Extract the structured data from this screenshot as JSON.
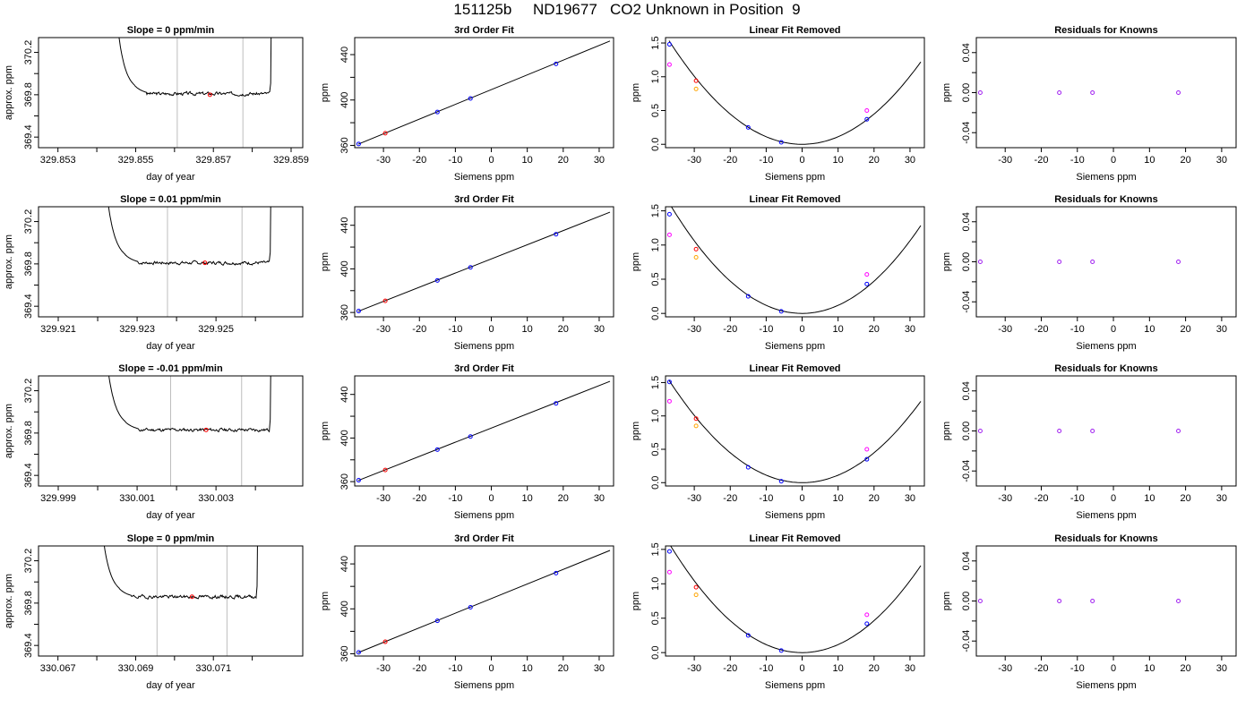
{
  "page_title": "151125b     ND19677   CO2 Unknown in Position  9",
  "colors": {
    "trace": "#000000",
    "window_lines": "#bebebe",
    "avg_point": "#ff0000",
    "standard": "#0000ff",
    "unknown_red": "#ff0000",
    "unknown_orange": "#ffa500",
    "magenta": "#ff00ff",
    "residual": "#a020f0"
  },
  "chart_data": [
    {
      "type": "line",
      "row": 0,
      "panel": "time_trace",
      "title": "Slope =  0  ppm/min",
      "xlabel": "day of year",
      "ylabel": "approx. ppm",
      "xlim": [
        329.8525,
        329.8593
      ],
      "ylim": [
        369.3,
        370.34
      ],
      "x_ticks": [
        329.853,
        329.854,
        329.855,
        329.856,
        329.857,
        329.858,
        329.859
      ],
      "x_tick_labels": [
        "329.853",
        "",
        "329.855",
        "",
        "329.857",
        "",
        "329.859"
      ],
      "y_ticks": [
        369.4,
        369.6,
        369.8,
        370.0,
        370.2
      ],
      "y_tick_labels": [
        "369.4",
        "",
        "369.8",
        "",
        "370.2"
      ],
      "trace": {
        "x_start": 329.8545,
        "x_end": 329.85845,
        "base": 369.81,
        "left_level": 369.83,
        "seed": 3
      },
      "window": [
        329.85607,
        329.85776
      ],
      "avg_point": {
        "x": 329.85691,
        "y": 369.8
      }
    },
    {
      "type": "scatter",
      "row": 0,
      "panel": "third_order_fit",
      "title": "3rd Order Fit",
      "xlabel": "Siemens ppm",
      "ylabel": "ppm",
      "xlim": [
        -38,
        34
      ],
      "ylim": [
        358,
        455
      ],
      "x_ticks": [
        -30,
        -20,
        -10,
        0,
        10,
        20,
        30
      ],
      "x_tick_labels": [
        "-30",
        "-20",
        "-10",
        "0",
        "10",
        "20",
        "30"
      ],
      "y_ticks": [
        360,
        380,
        400,
        420,
        440
      ],
      "y_tick_labels": [
        "360",
        "",
        "400",
        "",
        "440"
      ],
      "fit_line": {
        "x": [
          -37,
          33
        ],
        "y": [
          361.1,
          452.0
        ]
      },
      "standards": {
        "x": [
          -36.9,
          -15,
          -5.8,
          18
        ],
        "y": [
          361.3,
          389.4,
          401.4,
          431.8
        ]
      },
      "unknown": {
        "x": -29.5,
        "y": 370.7
      }
    },
    {
      "type": "scatter",
      "row": 0,
      "panel": "linear_fit_removed",
      "title": "Linear Fit Removed",
      "xlabel": "Siemens ppm",
      "ylabel": "ppm",
      "xlim": [
        -38,
        34
      ],
      "ylim": [
        -0.05,
        1.58
      ],
      "x_ticks": [
        -30,
        -20,
        -10,
        0,
        10,
        20,
        30
      ],
      "x_tick_labels": [
        "-30",
        "-20",
        "-10",
        "0",
        "10",
        "20",
        "30"
      ],
      "y_ticks": [
        0,
        0.5,
        1.0,
        1.5
      ],
      "y_tick_labels": [
        "0.0",
        "0.5",
        "1.0",
        "1.5"
      ],
      "curve_coef": 0.00112,
      "curve_x": [
        -37,
        33
      ],
      "standards": {
        "x": [
          -36.9,
          -15,
          -5.8,
          18
        ],
        "y": [
          1.48,
          0.25,
          0.03,
          0.37
        ]
      },
      "magenta": {
        "x": [
          -36.9,
          18
        ],
        "y": [
          1.18,
          0.5
        ]
      },
      "unknown_red": {
        "x": -29.5,
        "y": 0.94
      },
      "unknown_orange": {
        "x": -29.5,
        "y": 0.82
      }
    },
    {
      "type": "scatter",
      "row": 0,
      "panel": "residuals",
      "title": "Residuals for Knowns",
      "xlabel": "Siemens ppm",
      "ylabel": "ppm",
      "xlim": [
        -38,
        34
      ],
      "ylim": [
        -0.055,
        0.055
      ],
      "x_ticks": [
        -30,
        -20,
        -10,
        0,
        10,
        20,
        30
      ],
      "x_tick_labels": [
        "-30",
        "-20",
        "-10",
        "0",
        "10",
        "20",
        "30"
      ],
      "y_ticks": [
        -0.04,
        -0.02,
        0,
        0.02,
        0.04
      ],
      "y_tick_labels": [
        "-0.04",
        "",
        "0.00",
        "",
        "0.04"
      ],
      "residuals": {
        "x": [
          -36.9,
          -15,
          -5.8,
          18
        ],
        "y": [
          0,
          0,
          0,
          0
        ]
      }
    },
    {
      "type": "line",
      "row": 1,
      "panel": "time_trace",
      "title": "Slope =  0.01  ppm/min",
      "xlabel": "day of year",
      "ylabel": "approx. ppm",
      "xlim": [
        329.9205,
        329.9272
      ],
      "ylim": [
        369.3,
        370.34
      ],
      "x_ticks": [
        329.921,
        329.922,
        329.923,
        329.924,
        329.925,
        329.926
      ],
      "x_tick_labels": [
        "329.921",
        "",
        "329.923",
        "",
        "329.925",
        ""
      ],
      "y_ticks": [
        369.4,
        369.6,
        369.8,
        370.0,
        370.2
      ],
      "y_tick_labels": [
        "369.4",
        "",
        "369.8",
        "",
        "370.2"
      ],
      "trace": {
        "x_start": 329.9222,
        "x_end": 329.92635,
        "base": 369.81,
        "left_level": 369.83,
        "seed": 7
      },
      "window": [
        329.92377,
        329.92566
      ],
      "avg_point": {
        "x": 329.92472,
        "y": 369.81
      }
    },
    {
      "type": "scatter",
      "row": 1,
      "panel": "third_order_fit",
      "title": "3rd Order Fit",
      "xlabel": "Siemens ppm",
      "ylabel": "ppm",
      "xlim": [
        -38,
        34
      ],
      "ylim": [
        356,
        457
      ],
      "x_ticks": [
        -30,
        -20,
        -10,
        0,
        10,
        20,
        30
      ],
      "x_tick_labels": [
        "-30",
        "-20",
        "-10",
        "0",
        "10",
        "20",
        "30"
      ],
      "y_ticks": [
        360,
        380,
        400,
        420,
        440
      ],
      "y_tick_labels": [
        "360",
        "",
        "400",
        "",
        "440"
      ],
      "fit_line": {
        "x": [
          -37,
          33
        ],
        "y": [
          361.1,
          452.0
        ]
      },
      "standards": {
        "x": [
          -36.9,
          -15,
          -5.8,
          18
        ],
        "y": [
          361.3,
          389.4,
          401.4,
          431.8
        ]
      },
      "unknown": {
        "x": -29.5,
        "y": 370.7
      }
    },
    {
      "type": "scatter",
      "row": 1,
      "panel": "linear_fit_removed",
      "title": "Linear Fit Removed",
      "xlabel": "Siemens ppm",
      "ylabel": "ppm",
      "xlim": [
        -38,
        34
      ],
      "ylim": [
        -0.05,
        1.56
      ],
      "x_ticks": [
        -30,
        -20,
        -10,
        0,
        10,
        20,
        30
      ],
      "x_tick_labels": [
        "-30",
        "-20",
        "-10",
        "0",
        "10",
        "20",
        "30"
      ],
      "y_ticks": [
        0,
        0.5,
        1.0,
        1.5
      ],
      "y_tick_labels": [
        "0.0",
        "0.5",
        "1.0",
        "1.5"
      ],
      "curve_coef": 0.00118,
      "curve_x": [
        -37,
        33
      ],
      "standards": {
        "x": [
          -36.9,
          -15,
          -5.8,
          18
        ],
        "y": [
          1.45,
          0.25,
          0.03,
          0.43
        ]
      },
      "magenta": {
        "x": [
          -36.9,
          18
        ],
        "y": [
          1.15,
          0.57
        ]
      },
      "unknown_red": {
        "x": -29.5,
        "y": 0.94
      },
      "unknown_orange": {
        "x": -29.5,
        "y": 0.82
      }
    },
    {
      "type": "scatter",
      "row": 1,
      "panel": "residuals",
      "title": "Residuals for Knowns",
      "xlabel": "Siemens ppm",
      "ylabel": "ppm",
      "xlim": [
        -38,
        34
      ],
      "ylim": [
        -0.055,
        0.055
      ],
      "x_ticks": [
        -30,
        -20,
        -10,
        0,
        10,
        20,
        30
      ],
      "x_tick_labels": [
        "-30",
        "-20",
        "-10",
        "0",
        "10",
        "20",
        "30"
      ],
      "y_ticks": [
        -0.04,
        -0.02,
        0,
        0.02,
        0.04
      ],
      "y_tick_labels": [
        "-0.04",
        "",
        "0.00",
        "",
        "0.04"
      ],
      "residuals": {
        "x": [
          -36.9,
          -15,
          -5.8,
          18
        ],
        "y": [
          0,
          0,
          0,
          0
        ]
      }
    },
    {
      "type": "line",
      "row": 2,
      "panel": "time_trace",
      "title": "Slope =  -0.01  ppm/min",
      "xlabel": "day of year",
      "ylabel": "approx. ppm",
      "xlim": [
        329.9985,
        330.0052
      ],
      "ylim": [
        369.3,
        370.34
      ],
      "x_ticks": [
        329.999,
        330.0,
        330.001,
        330.002,
        330.003,
        330.004
      ],
      "x_tick_labels": [
        "329.999",
        "",
        "330.001",
        "",
        "330.003",
        ""
      ],
      "y_ticks": [
        369.4,
        369.6,
        369.8,
        370.0,
        370.2
      ],
      "y_tick_labels": [
        "369.4",
        "",
        "369.8",
        "",
        "370.2"
      ],
      "trace": {
        "x_start": 330.0002,
        "x_end": 330.00435,
        "base": 369.83,
        "left_level": 369.85,
        "seed": 11
      },
      "window": [
        330.00185,
        330.00365
      ],
      "avg_point": {
        "x": 330.00275,
        "y": 369.83
      }
    },
    {
      "type": "scatter",
      "row": 2,
      "panel": "third_order_fit",
      "title": "3rd Order Fit",
      "xlabel": "Siemens ppm",
      "ylabel": "ppm",
      "xlim": [
        -38,
        34
      ],
      "ylim": [
        356,
        457
      ],
      "x_ticks": [
        -30,
        -20,
        -10,
        0,
        10,
        20,
        30
      ],
      "x_tick_labels": [
        "-30",
        "-20",
        "-10",
        "0",
        "10",
        "20",
        "30"
      ],
      "y_ticks": [
        360,
        380,
        400,
        420,
        440
      ],
      "y_tick_labels": [
        "360",
        "",
        "400",
        "",
        "440"
      ],
      "fit_line": {
        "x": [
          -37,
          33
        ],
        "y": [
          361.1,
          452.0
        ]
      },
      "standards": {
        "x": [
          -36.9,
          -15,
          -5.8,
          18
        ],
        "y": [
          361.3,
          389.4,
          401.4,
          431.8
        ]
      },
      "unknown": {
        "x": -29.5,
        "y": 370.7
      }
    },
    {
      "type": "scatter",
      "row": 2,
      "panel": "linear_fit_removed",
      "title": "Linear Fit Removed",
      "xlabel": "Siemens ppm",
      "ylabel": "ppm",
      "xlim": [
        -38,
        34
      ],
      "ylim": [
        -0.05,
        1.6
      ],
      "x_ticks": [
        -30,
        -20,
        -10,
        0,
        10,
        20,
        30
      ],
      "x_tick_labels": [
        "-30",
        "-20",
        "-10",
        "0",
        "10",
        "20",
        "30"
      ],
      "y_ticks": [
        0,
        0.5,
        1.0,
        1.5
      ],
      "y_tick_labels": [
        "0.0",
        "0.5",
        "1.0",
        "1.5"
      ],
      "curve_coef": 0.00112,
      "curve_x": [
        -37,
        33
      ],
      "standards": {
        "x": [
          -36.9,
          -15,
          -5.8,
          18
        ],
        "y": [
          1.51,
          0.23,
          0.02,
          0.35
        ]
      },
      "magenta": {
        "x": [
          -36.9,
          18
        ],
        "y": [
          1.22,
          0.5
        ]
      },
      "unknown_red": {
        "x": -29.5,
        "y": 0.96
      },
      "unknown_orange": {
        "x": -29.5,
        "y": 0.85
      }
    },
    {
      "type": "scatter",
      "row": 2,
      "panel": "residuals",
      "title": "Residuals for Knowns",
      "xlabel": "Siemens ppm",
      "ylabel": "ppm",
      "xlim": [
        -38,
        34
      ],
      "ylim": [
        -0.055,
        0.055
      ],
      "x_ticks": [
        -30,
        -20,
        -10,
        0,
        10,
        20,
        30
      ],
      "x_tick_labels": [
        "-30",
        "-20",
        "-10",
        "0",
        "10",
        "20",
        "30"
      ],
      "y_ticks": [
        -0.04,
        -0.02,
        0,
        0.02,
        0.04
      ],
      "y_tick_labels": [
        "-0.04",
        "",
        "0.00",
        "",
        "0.04"
      ],
      "residuals": {
        "x": [
          -36.9,
          -15,
          -5.8,
          18
        ],
        "y": [
          0,
          0,
          0,
          0
        ]
      }
    },
    {
      "type": "line",
      "row": 3,
      "panel": "time_trace",
      "title": "Slope =  0  ppm/min",
      "xlabel": "day of year",
      "ylabel": "approx. ppm",
      "xlim": [
        330.0665,
        330.0733
      ],
      "ylim": [
        369.3,
        370.34
      ],
      "x_ticks": [
        330.067,
        330.068,
        330.069,
        330.07,
        330.071,
        330.072
      ],
      "x_tick_labels": [
        "330.067",
        "",
        "330.069",
        "",
        "330.071",
        ""
      ],
      "y_ticks": [
        369.4,
        369.6,
        369.8,
        370.0,
        370.2
      ],
      "y_tick_labels": [
        "369.4",
        "",
        "369.8",
        "",
        "370.2"
      ],
      "trace": {
        "x_start": 330.0681,
        "x_end": 330.0721,
        "base": 369.86,
        "left_level": 369.88,
        "seed": 19
      },
      "window": [
        330.06955,
        330.07135
      ],
      "avg_point": {
        "x": 330.07045,
        "y": 369.86
      }
    },
    {
      "type": "scatter",
      "row": 3,
      "panel": "third_order_fit",
      "title": "3rd Order Fit",
      "xlabel": "Siemens ppm",
      "ylabel": "ppm",
      "xlim": [
        -38,
        34
      ],
      "ylim": [
        358,
        456
      ],
      "x_ticks": [
        -30,
        -20,
        -10,
        0,
        10,
        20,
        30
      ],
      "x_tick_labels": [
        "-30",
        "-20",
        "-10",
        "0",
        "10",
        "20",
        "30"
      ],
      "y_ticks": [
        360,
        380,
        400,
        420,
        440
      ],
      "y_tick_labels": [
        "360",
        "",
        "400",
        "",
        "440"
      ],
      "fit_line": {
        "x": [
          -37,
          33
        ],
        "y": [
          361.1,
          452.0
        ]
      },
      "standards": {
        "x": [
          -36.9,
          -15,
          -5.8,
          18
        ],
        "y": [
          361.3,
          389.4,
          401.4,
          431.8
        ]
      },
      "unknown": {
        "x": -29.5,
        "y": 370.7
      }
    },
    {
      "type": "scatter",
      "row": 3,
      "panel": "linear_fit_removed",
      "title": "Linear Fit Removed",
      "xlabel": "Siemens ppm",
      "ylabel": "ppm",
      "xlim": [
        -38,
        34
      ],
      "ylim": [
        -0.05,
        1.55
      ],
      "x_ticks": [
        -30,
        -20,
        -10,
        0,
        10,
        20,
        30
      ],
      "x_tick_labels": [
        "-30",
        "-20",
        "-10",
        "0",
        "10",
        "20",
        "30"
      ],
      "y_ticks": [
        0,
        0.5,
        1.0,
        1.5
      ],
      "y_tick_labels": [
        "0.0",
        "0.5",
        "1.0",
        "1.5"
      ],
      "curve_coef": 0.00116,
      "curve_x": [
        -37,
        33
      ],
      "standards": {
        "x": [
          -36.9,
          -15,
          -5.8,
          18
        ],
        "y": [
          1.47,
          0.25,
          0.03,
          0.42
        ]
      },
      "magenta": {
        "x": [
          -36.9,
          18
        ],
        "y": [
          1.17,
          0.55
        ]
      },
      "unknown_red": {
        "x": -29.5,
        "y": 0.95
      },
      "unknown_orange": {
        "x": -29.5,
        "y": 0.84
      }
    },
    {
      "type": "scatter",
      "row": 3,
      "panel": "residuals",
      "title": "Residuals for Knowns",
      "xlabel": "Siemens ppm",
      "ylabel": "ppm",
      "xlim": [
        -38,
        34
      ],
      "ylim": [
        -0.055,
        0.055
      ],
      "x_ticks": [
        -30,
        -20,
        -10,
        0,
        10,
        20,
        30
      ],
      "x_tick_labels": [
        "-30",
        "-20",
        "-10",
        "0",
        "10",
        "20",
        "30"
      ],
      "y_ticks": [
        -0.04,
        -0.02,
        0,
        0.02,
        0.04
      ],
      "y_tick_labels": [
        "-0.04",
        "",
        "0.00",
        "",
        "0.04"
      ],
      "residuals": {
        "x": [
          -36.9,
          -15,
          -5.8,
          18
        ],
        "y": [
          0,
          0,
          0,
          0
        ]
      }
    }
  ]
}
